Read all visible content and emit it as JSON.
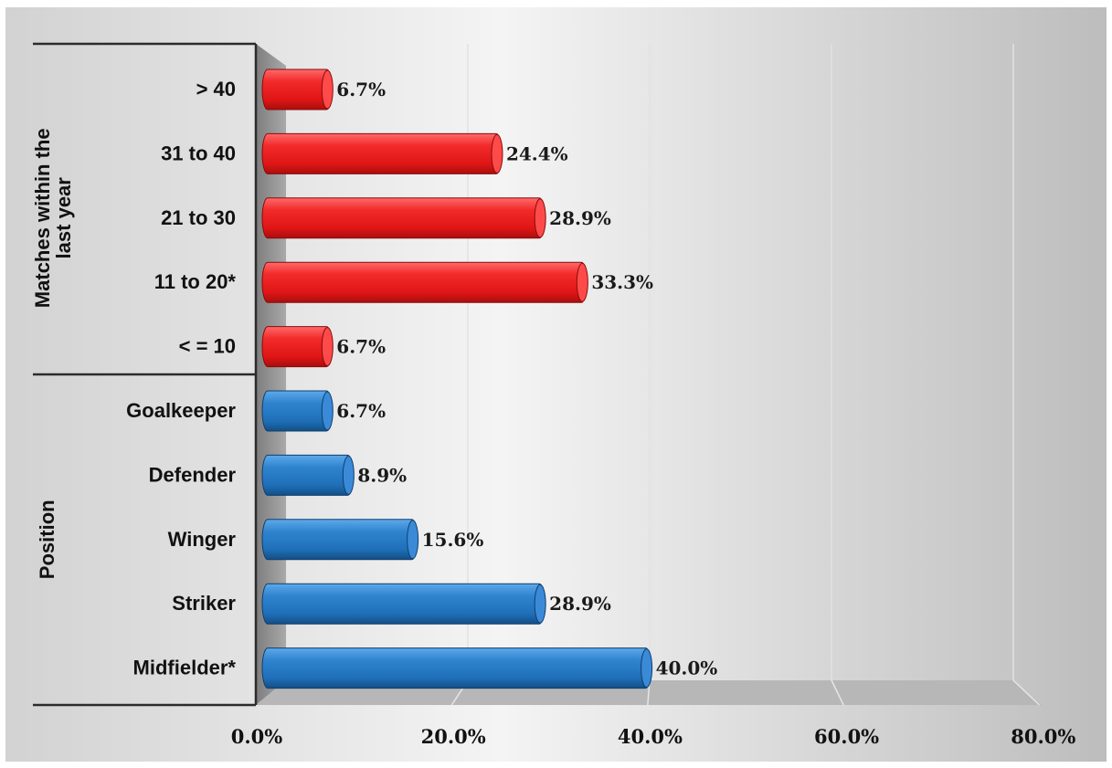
{
  "chart_data": {
    "type": "bar",
    "orientation": "horizontal",
    "xlim": [
      0,
      80
    ],
    "x_ticks": [
      "0.0%",
      "20.0%",
      "40.0%",
      "60.0%",
      "80.0%"
    ],
    "x_tick_values": [
      0,
      20,
      40,
      60,
      80
    ],
    "grid": true,
    "groups": [
      {
        "label": "Matches within the last year",
        "color": "#e8262a",
        "items": [
          {
            "category": "> 40",
            "value": 6.7,
            "label": "6.7%"
          },
          {
            "category": "31 to 40",
            "value": 24.4,
            "label": "24.4%"
          },
          {
            "category": "21 to 30",
            "value": 28.9,
            "label": "28.9%"
          },
          {
            "category": "11 to 20*",
            "value": 33.3,
            "label": "33.3%"
          },
          {
            "category": "< = 10",
            "value": 6.7,
            "label": "6.7%"
          }
        ]
      },
      {
        "label": "Position",
        "color": "#2a7fc9",
        "items": [
          {
            "category": "Goalkeeper",
            "value": 6.7,
            "label": "6.7%"
          },
          {
            "category": "Defender",
            "value": 8.9,
            "label": "8.9%"
          },
          {
            "category": "Winger",
            "value": 15.6,
            "label": "15.6%"
          },
          {
            "category": "Striker",
            "value": 28.9,
            "label": "28.9%"
          },
          {
            "category": "Midfielder*",
            "value": 40.0,
            "label": "40.0%"
          }
        ]
      }
    ]
  }
}
